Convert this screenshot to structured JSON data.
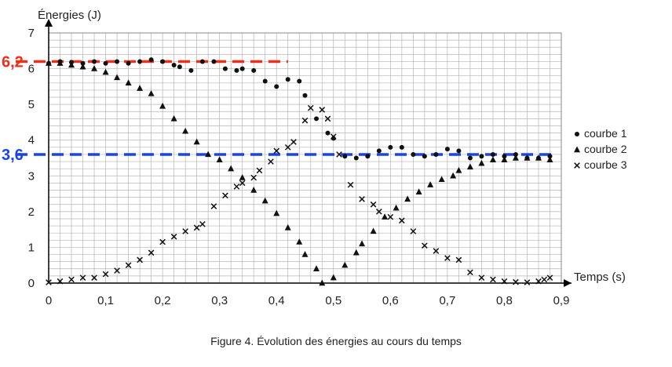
{
  "chart_data": {
    "type": "scatter",
    "title": "",
    "ylabel": "Énergies (J)",
    "xlabel": "Temps (s)",
    "xlim": [
      0,
      0.9
    ],
    "ylim": [
      0,
      7
    ],
    "x_ticks": [
      "0",
      "0,1",
      "0,2",
      "0,3",
      "0,4",
      "0,5",
      "0,6",
      "0,7",
      "0,8",
      "0,9"
    ],
    "y_ticks": [
      "0",
      "1",
      "2",
      "3",
      "4",
      "5",
      "6",
      "7"
    ],
    "grid": true,
    "legend_position": "right",
    "series": [
      {
        "name": "courbe 1",
        "marker": "circle",
        "points": [
          [
            0.0,
            6.15
          ],
          [
            0.02,
            6.2
          ],
          [
            0.04,
            6.18
          ],
          [
            0.06,
            6.15
          ],
          [
            0.08,
            6.2
          ],
          [
            0.1,
            6.15
          ],
          [
            0.12,
            6.2
          ],
          [
            0.14,
            6.15
          ],
          [
            0.16,
            6.2
          ],
          [
            0.18,
            6.25
          ],
          [
            0.2,
            6.2
          ],
          [
            0.22,
            6.1
          ],
          [
            0.23,
            6.05
          ],
          [
            0.25,
            5.95
          ],
          [
            0.27,
            6.2
          ],
          [
            0.29,
            6.2
          ],
          [
            0.31,
            6.0
          ],
          [
            0.33,
            5.95
          ],
          [
            0.34,
            6.0
          ],
          [
            0.36,
            5.95
          ],
          [
            0.38,
            5.65
          ],
          [
            0.4,
            5.5
          ],
          [
            0.42,
            5.7
          ],
          [
            0.44,
            5.65
          ],
          [
            0.45,
            5.25
          ],
          [
            0.47,
            4.6
          ],
          [
            0.49,
            4.2
          ],
          [
            0.5,
            4.05
          ],
          [
            0.52,
            3.55
          ],
          [
            0.54,
            3.5
          ],
          [
            0.56,
            3.55
          ],
          [
            0.58,
            3.7
          ],
          [
            0.6,
            3.8
          ],
          [
            0.62,
            3.8
          ],
          [
            0.64,
            3.6
          ],
          [
            0.66,
            3.55
          ],
          [
            0.68,
            3.6
          ],
          [
            0.7,
            3.75
          ],
          [
            0.72,
            3.7
          ],
          [
            0.74,
            3.5
          ],
          [
            0.76,
            3.55
          ],
          [
            0.78,
            3.6
          ],
          [
            0.8,
            3.55
          ],
          [
            0.82,
            3.6
          ],
          [
            0.84,
            3.5
          ],
          [
            0.86,
            3.5
          ],
          [
            0.88,
            3.55
          ]
        ]
      },
      {
        "name": "courbe 2",
        "marker": "triangle",
        "points": [
          [
            0.0,
            6.15
          ],
          [
            0.02,
            6.15
          ],
          [
            0.04,
            6.1
          ],
          [
            0.06,
            6.05
          ],
          [
            0.08,
            6.0
          ],
          [
            0.1,
            5.9
          ],
          [
            0.12,
            5.75
          ],
          [
            0.14,
            5.6
          ],
          [
            0.16,
            5.45
          ],
          [
            0.18,
            5.3
          ],
          [
            0.2,
            4.95
          ],
          [
            0.22,
            4.6
          ],
          [
            0.24,
            4.25
          ],
          [
            0.26,
            3.95
          ],
          [
            0.28,
            3.6
          ],
          [
            0.3,
            3.45
          ],
          [
            0.32,
            3.2
          ],
          [
            0.34,
            2.95
          ],
          [
            0.36,
            2.6
          ],
          [
            0.38,
            2.3
          ],
          [
            0.4,
            1.95
          ],
          [
            0.42,
            1.55
          ],
          [
            0.44,
            1.15
          ],
          [
            0.45,
            0.8
          ],
          [
            0.47,
            0.4
          ],
          [
            0.48,
            0.0
          ],
          [
            0.5,
            0.15
          ],
          [
            0.52,
            0.5
          ],
          [
            0.54,
            0.85
          ],
          [
            0.55,
            1.1
          ],
          [
            0.57,
            1.45
          ],
          [
            0.59,
            1.85
          ],
          [
            0.61,
            2.1
          ],
          [
            0.63,
            2.35
          ],
          [
            0.65,
            2.55
          ],
          [
            0.67,
            2.75
          ],
          [
            0.69,
            2.9
          ],
          [
            0.71,
            3.0
          ],
          [
            0.72,
            3.15
          ],
          [
            0.74,
            3.25
          ],
          [
            0.76,
            3.35
          ],
          [
            0.78,
            3.45
          ],
          [
            0.8,
            3.45
          ],
          [
            0.82,
            3.5
          ],
          [
            0.84,
            3.5
          ],
          [
            0.86,
            3.5
          ],
          [
            0.88,
            3.45
          ]
        ]
      },
      {
        "name": "courbe 3",
        "marker": "cross",
        "points": [
          [
            0.0,
            0.02
          ],
          [
            0.02,
            0.05
          ],
          [
            0.04,
            0.1
          ],
          [
            0.06,
            0.15
          ],
          [
            0.08,
            0.15
          ],
          [
            0.1,
            0.25
          ],
          [
            0.12,
            0.35
          ],
          [
            0.14,
            0.5
          ],
          [
            0.16,
            0.65
          ],
          [
            0.18,
            0.85
          ],
          [
            0.2,
            1.15
          ],
          [
            0.22,
            1.3
          ],
          [
            0.24,
            1.45
          ],
          [
            0.26,
            1.55
          ],
          [
            0.27,
            1.65
          ],
          [
            0.29,
            2.15
          ],
          [
            0.31,
            2.45
          ],
          [
            0.33,
            2.7
          ],
          [
            0.34,
            2.8
          ],
          [
            0.36,
            2.95
          ],
          [
            0.37,
            3.15
          ],
          [
            0.39,
            3.4
          ],
          [
            0.4,
            3.7
          ],
          [
            0.42,
            3.8
          ],
          [
            0.43,
            3.95
          ],
          [
            0.45,
            4.55
          ],
          [
            0.46,
            4.9
          ],
          [
            0.48,
            4.85
          ],
          [
            0.49,
            4.6
          ],
          [
            0.5,
            4.1
          ],
          [
            0.51,
            3.6
          ],
          [
            0.53,
            2.75
          ],
          [
            0.55,
            2.35
          ],
          [
            0.57,
            2.2
          ],
          [
            0.58,
            2.0
          ],
          [
            0.6,
            1.85
          ],
          [
            0.62,
            1.75
          ],
          [
            0.64,
            1.45
          ],
          [
            0.66,
            1.05
          ],
          [
            0.68,
            0.9
          ],
          [
            0.7,
            0.7
          ],
          [
            0.72,
            0.65
          ],
          [
            0.74,
            0.3
          ],
          [
            0.76,
            0.15
          ],
          [
            0.78,
            0.1
          ],
          [
            0.8,
            0.05
          ],
          [
            0.82,
            0.03
          ],
          [
            0.84,
            0.02
          ],
          [
            0.86,
            0.05
          ],
          [
            0.87,
            0.1
          ],
          [
            0.88,
            0.15
          ]
        ]
      }
    ],
    "reference_lines": [
      {
        "value": 6.2,
        "label": "6,2",
        "color": "#ee2f1a",
        "x_end": 0.42
      },
      {
        "value": 3.6,
        "label": "3,6",
        "color": "#1a44e8",
        "x_end": 0.89
      }
    ]
  },
  "caption": "Figure 4. Évolution des énergies au cours du temps"
}
